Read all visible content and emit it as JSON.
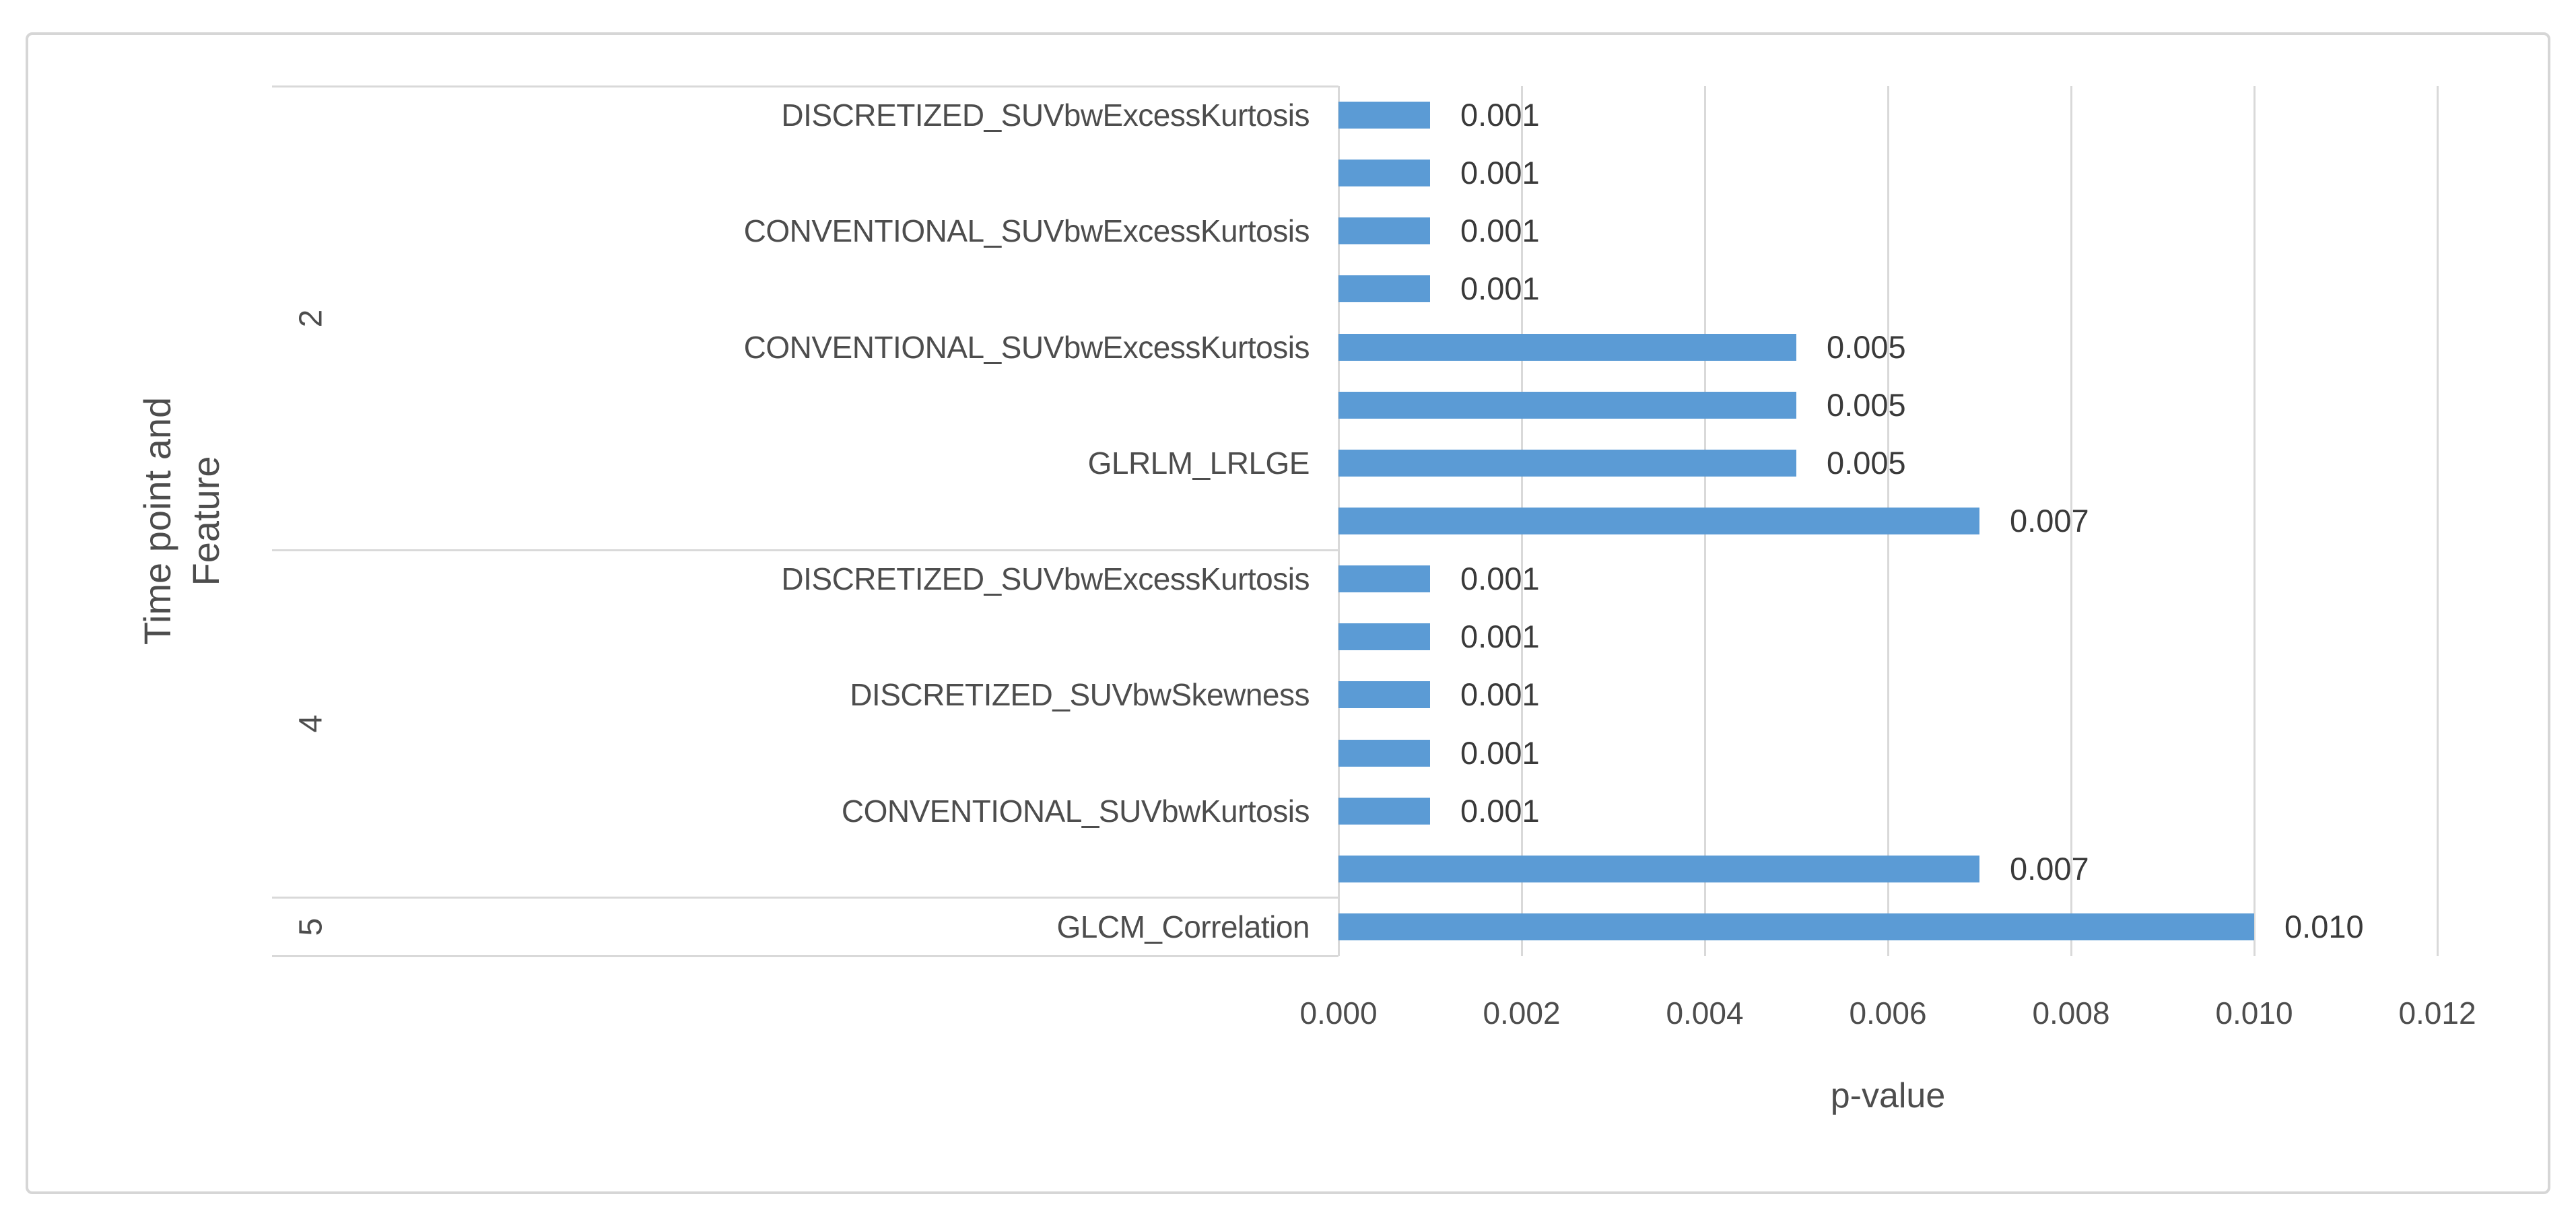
{
  "figure": {
    "background": "#ffffff",
    "border_color": "#d6d6d6"
  },
  "colors": {
    "bar": "#5b9bd5",
    "grid": "#d9d9d9",
    "axis_text": "#4d4d4d",
    "data_label": "#3a3a3a"
  },
  "chart_data": {
    "type": "bar",
    "orientation": "horizontal",
    "title": "",
    "xlabel": "p-value",
    "ylabel": "Time point and Feature",
    "ylabel_lines": [
      "Time point and",
      "Feature"
    ],
    "xlim": [
      0,
      0.012
    ],
    "grid": true,
    "legend": false,
    "x_tick_values": [
      0.0,
      0.002,
      0.004,
      0.006,
      0.008,
      0.01,
      0.012
    ],
    "x_tick_labels": [
      "0.000",
      "0.002",
      "0.004",
      "0.006",
      "0.008",
      "0.010",
      "0.012"
    ],
    "groups": [
      {
        "time_point": "2",
        "bars": [
          {
            "feature": "DISCRETIZED_SUVbwExcessKurtosis",
            "value": 0.001,
            "value_label": "0.001"
          },
          {
            "feature": "",
            "value": 0.001,
            "value_label": "0.001"
          },
          {
            "feature": "CONVENTIONAL_SUVbwExcessKurtosis",
            "value": 0.001,
            "value_label": "0.001"
          },
          {
            "feature": "",
            "value": 0.001,
            "value_label": "0.001"
          },
          {
            "feature": "CONVENTIONAL_SUVbwExcessKurtosis",
            "value": 0.005,
            "value_label": "0.005"
          },
          {
            "feature": "",
            "value": 0.005,
            "value_label": "0.005"
          },
          {
            "feature": "GLRLM_LRLGE",
            "value": 0.005,
            "value_label": "0.005"
          },
          {
            "feature": "",
            "value": 0.007,
            "value_label": "0.007"
          }
        ]
      },
      {
        "time_point": "4",
        "bars": [
          {
            "feature": "DISCRETIZED_SUVbwExcessKurtosis",
            "value": 0.001,
            "value_label": "0.001"
          },
          {
            "feature": "",
            "value": 0.001,
            "value_label": "0.001"
          },
          {
            "feature": "DISCRETIZED_SUVbwSkewness",
            "value": 0.001,
            "value_label": "0.001"
          },
          {
            "feature": "",
            "value": 0.001,
            "value_label": "0.001"
          },
          {
            "feature": "CONVENTIONAL_SUVbwKurtosis",
            "value": 0.001,
            "value_label": "0.001"
          },
          {
            "feature": "",
            "value": 0.007,
            "value_label": "0.007"
          }
        ]
      },
      {
        "time_point": "5",
        "bars": [
          {
            "feature": "GLCM_Correlation",
            "value": 0.01,
            "value_label": "0.010"
          }
        ]
      }
    ]
  }
}
